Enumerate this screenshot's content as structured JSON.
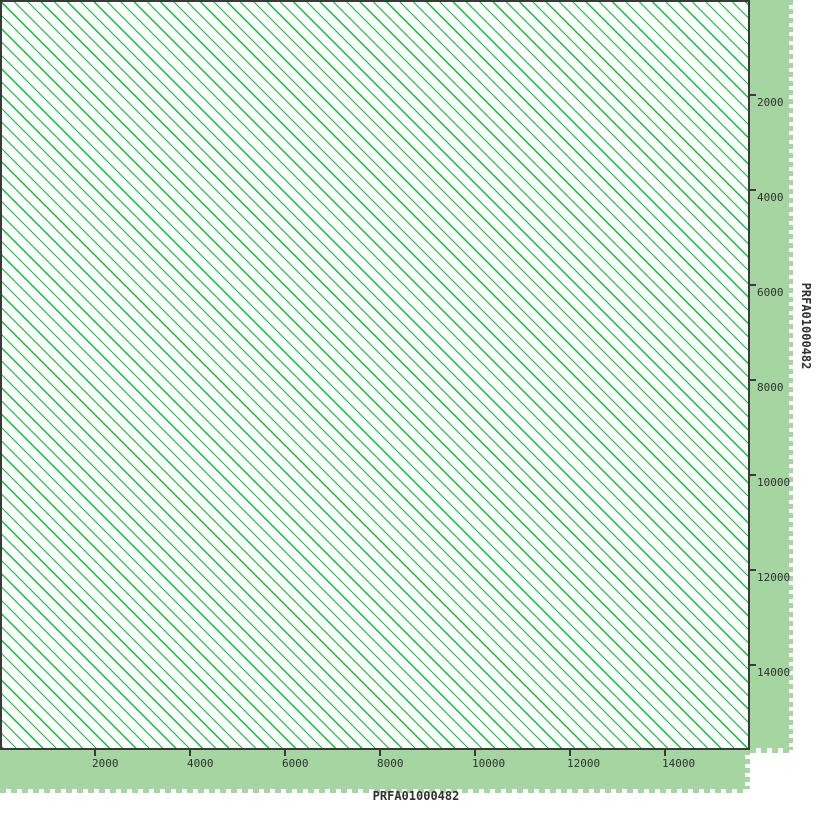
{
  "colors": {
    "margin_green": "#a5d6a2",
    "match_line_green": "#00c832",
    "axis_dark": "#3a3a3a",
    "text": "#303030",
    "plot_background": "#ffffff"
  },
  "axes": {
    "x": {
      "title": "PRFA01000482",
      "ticks": [
        2000,
        4000,
        6000,
        8000,
        10000,
        12000,
        14000
      ],
      "max": 15800
    },
    "y": {
      "title": "PRFA01000482",
      "ticks": [
        2000,
        4000,
        6000,
        8000,
        10000,
        12000,
        14000
      ],
      "max": 15800
    }
  },
  "chart_data": {
    "type": "scatter",
    "subtype": "self-alignment dotplot (sequence vs itself)",
    "x_sequence": "PRFA01000482",
    "y_sequence": "PRFA01000482",
    "xlabel": "PRFA01000482",
    "ylabel": "PRFA01000482",
    "xlim": [
      1,
      15800
    ],
    "ylim": [
      1,
      15800
    ],
    "x_ticks": [
      2000,
      4000,
      6000,
      8000,
      10000,
      12000,
      14000
    ],
    "y_ticks": [
      2000,
      4000,
      6000,
      8000,
      10000,
      12000,
      14000
    ],
    "grid": false,
    "legend": null,
    "pattern": {
      "description": "dense parallel diagonal match lines filling the entire matrix, parallel to the main diagonal (top-left to bottom-right), indicating a tandem repeat across the whole sequence",
      "approx_repeat_period_bp": 280,
      "approx_line_spacing_px": 13.3,
      "line_color": "#00c832"
    }
  }
}
